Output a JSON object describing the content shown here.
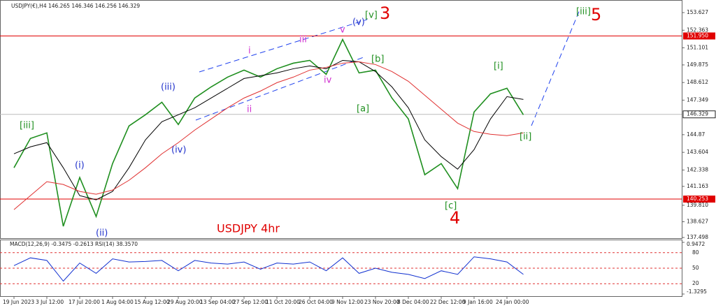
{
  "chart_data": [
    {
      "type": "line",
      "title": "USDJPY(€),H4  146.265 146.346 146.256 146.329",
      "categories": [
        "19 Jun 2023",
        null,
        "3 Jul 12:00",
        null,
        "17 Jul 20:00",
        null,
        "1 Aug 04:00",
        null,
        "15 Aug 12:00",
        null,
        "29 Aug 20:00",
        null,
        "13 Sep 04:00",
        null,
        "27 Sep 12:00",
        null,
        "11 Oct 20:00",
        null,
        "26 Oct 04:00",
        null,
        "9 Nov 12:00",
        null,
        "23 Nov 20:00",
        null,
        "8 Dec 04:00",
        null,
        "22 Dec 12:00",
        null,
        "9 Jan 16:00",
        null,
        "24 Jan 00:00",
        null
      ],
      "series": [
        {
          "color": "#1f8f1f",
          "values": [
            142.5,
            144.6,
            145.0,
            138.3,
            141.8,
            139.0,
            142.8,
            145.5,
            146.3,
            147.2,
            145.6,
            147.5,
            148.3,
            149.0,
            149.5,
            149.0,
            149.6,
            150.0,
            150.2,
            149.2,
            151.7,
            149.3,
            149.5,
            147.5,
            146.0,
            142.0,
            142.8,
            141.0,
            146.5,
            147.8,
            148.2,
            146.3
          ]
        },
        {
          "color": "#000000",
          "values": [
            143.5,
            144.0,
            144.3,
            142.5,
            140.5,
            140.2,
            140.8,
            142.5,
            144.5,
            145.8,
            146.3,
            146.8,
            147.5,
            148.2,
            148.9,
            149.1,
            149.3,
            149.6,
            149.8,
            149.6,
            150.2,
            150.1,
            149.4,
            148.3,
            146.8,
            144.5,
            143.3,
            142.4,
            143.8,
            146.0,
            147.6,
            147.4
          ]
        },
        {
          "color": "#e03030",
          "values": [
            139.5,
            140.5,
            141.5,
            141.3,
            140.8,
            140.6,
            140.9,
            141.6,
            142.5,
            143.5,
            144.3,
            145.2,
            146.0,
            146.8,
            147.5,
            148.0,
            148.6,
            149.0,
            149.5,
            149.7,
            150.0,
            150.1,
            149.9,
            149.4,
            148.7,
            147.7,
            146.7,
            145.7,
            145.1,
            144.9,
            144.8,
            145.0
          ]
        }
      ],
      "ylim": [
        137.4,
        154.53
      ],
      "yticks": [
        153.627,
        152.363,
        151.101,
        149.875,
        148.612,
        147.349,
        144.87,
        143.604,
        142.338,
        141.163,
        {
          "value": 139.81,
          "label": "139.810"
        },
        138.627,
        137.498
      ],
      "levels": [
        {
          "value": 151.95,
          "label": "151.950"
        },
        140.253
      ],
      "level_color": "#e00000",
      "last_price": 146.329,
      "annotations": [
        {
          "text": "[iii]",
          "color": "#1f8f1f"
        },
        {
          "text": "(i)",
          "color": "#2233cc"
        },
        {
          "text": "(ii)",
          "color": "#2233cc"
        },
        {
          "text": "(iii)",
          "color": "#2233cc"
        },
        {
          "text": "(iv)",
          "color": "#2233cc"
        },
        {
          "text": "i",
          "color": "#d030d0"
        },
        {
          "text": "ii",
          "color": "#d030d0"
        },
        {
          "text": "iii",
          "color": "#d030d0"
        },
        {
          "text": "iv",
          "color": "#d030d0"
        },
        {
          "text": "v",
          "color": "#d030d0"
        },
        {
          "text": "(v)",
          "color": "#2233cc"
        },
        {
          "text": "[v]",
          "color": "#1f8f1f"
        },
        {
          "text": "3",
          "color": "#e00000"
        },
        {
          "text": "[a]",
          "color": "#1f8f1f"
        },
        {
          "text": "[b]",
          "color": "#1f8f1f"
        },
        {
          "text": "[c]",
          "color": "#1f8f1f"
        },
        {
          "text": "4",
          "color": "#e00000"
        },
        {
          "text": "[i]",
          "color": "#1f8f1f"
        },
        {
          "text": "[ii]",
          "color": "#1f8f1f"
        },
        {
          "text": "[iii]",
          "color": "#1f8f1f"
        },
        {
          "text": "5",
          "color": "#e00000"
        },
        {
          "text": "USDJPY 4hr",
          "color": "#e00000"
        }
      ]
    },
    {
      "type": "line",
      "title": "MACD(12,26,9) -0.3475 -0.2613 RSI(14) 38.3570",
      "series": [
        {
          "color": "#1030d0",
          "values": [
            55,
            70,
            65,
            25,
            60,
            40,
            68,
            62,
            63,
            65,
            45,
            65,
            60,
            58,
            62,
            48,
            60,
            58,
            62,
            45,
            70,
            40,
            50,
            42,
            38,
            30,
            45,
            38,
            72,
            68,
            62,
            38
          ]
        }
      ],
      "ylim": [
        0,
        100
      ],
      "yticks": [
        80,
        50,
        20
      ],
      "y2lim": [
        -1.3295,
        0.9472
      ],
      "y2ticks": [
        0.9472,
        -1.3295
      ]
    }
  ]
}
